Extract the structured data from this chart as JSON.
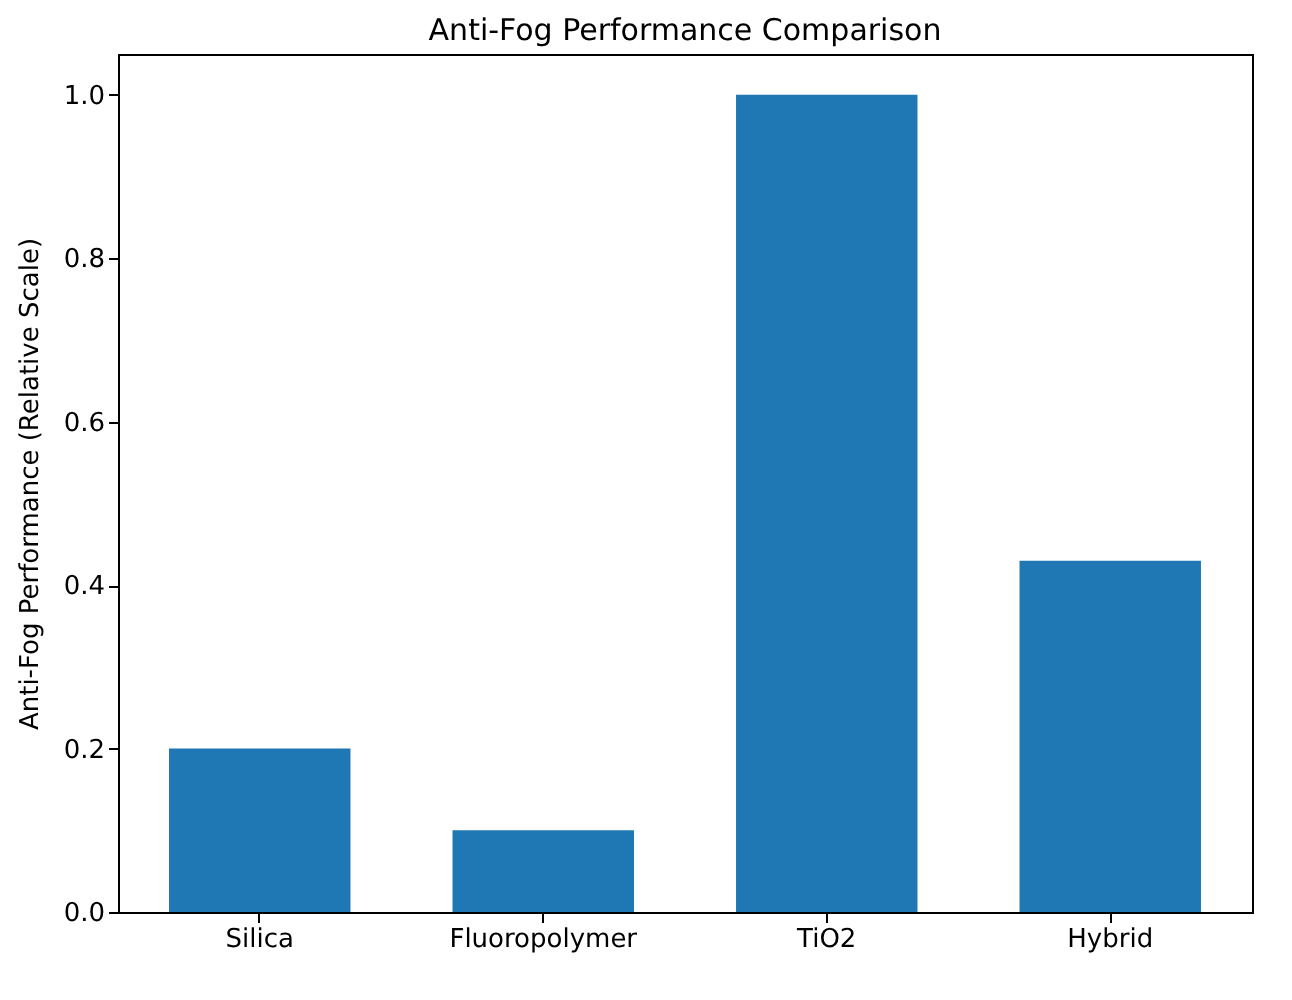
{
  "chart_data": {
    "type": "bar",
    "title": "Anti-Fog Performance Comparison",
    "ylabel": "Anti-Fog Performance (Relative Scale)",
    "categories": [
      "Silica",
      "Fluoropolymer",
      "TiO2",
      "Hybrid"
    ],
    "values": [
      0.2,
      0.1,
      1.0,
      0.43
    ],
    "color": "#1f77b4",
    "ylim": [
      0,
      1.05
    ],
    "yticks": [
      {
        "value": 0,
        "label": "0.0"
      },
      0.2,
      0.4,
      0.6,
      0.8,
      {
        "value": 1,
        "label": "1.0"
      }
    ],
    "grid": false
  }
}
